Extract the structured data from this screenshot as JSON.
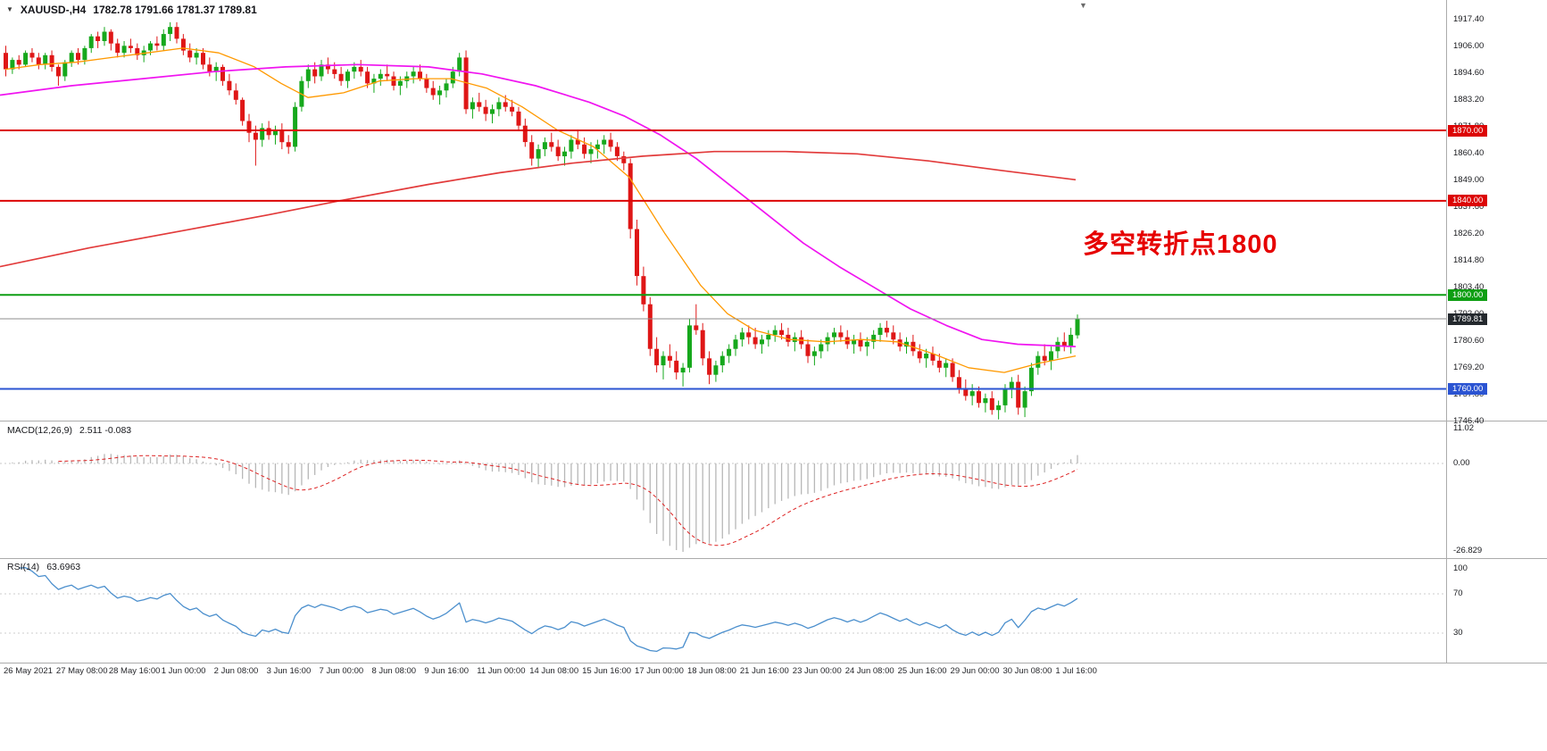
{
  "header": {
    "symbol_period": "XAUUSD-,H4",
    "ohlc": "1782.78 1791.66 1781.37 1789.81"
  },
  "annotation": {
    "text": "多空转折点1800",
    "color": "#e60000"
  },
  "indicators": {
    "macd": {
      "title": "MACD(12,26,9)",
      "values": "2.511 -0.083"
    },
    "rsi": {
      "title": "RSI(14)",
      "value": "63.6963"
    }
  },
  "colors": {
    "bull": "#16a81c",
    "bear": "#df1616",
    "ma_fast": "#ff9900",
    "ma_mid": "#f014f0",
    "ma_slow": "#e23b3b",
    "hline_red": "#dc0404",
    "hline_green": "#0e9e13",
    "hline_blue": "#2b54d2",
    "price_line": "#8e8e8e",
    "price_badge_bg": "#24292e",
    "macd_hist": "#b7b7b7",
    "macd_signal": "#dd2222",
    "rsi_line": "#4b8fcd",
    "grid_dotted": "#c9c9c9"
  },
  "chart_data": {
    "type": "candlestick",
    "symbol": "XAUUSD-",
    "timeframe": "H4",
    "title": "XAUUSD-,H4 1782.78 1791.66 1781.37 1789.81",
    "current_bar": {
      "open": 1782.78,
      "high": 1791.66,
      "low": 1781.37,
      "close": 1789.81
    },
    "ylim": [
      1746.4,
      1917.4
    ],
    "price_axis_labels": [
      {
        "price": 1917.4,
        "text": "1917.40"
      },
      {
        "price": 1906.0,
        "text": "1906.00"
      },
      {
        "price": 1894.6,
        "text": "1894.60"
      },
      {
        "price": 1883.2,
        "text": "1883.20"
      },
      {
        "price": 1871.8,
        "text": "1871.80"
      },
      {
        "price": 1860.4,
        "text": "1860.40"
      },
      {
        "price": 1849.0,
        "text": "1849.00"
      },
      {
        "price": 1837.6,
        "text": "1837.60"
      },
      {
        "price": 1826.2,
        "text": "1826.20"
      },
      {
        "price": 1814.8,
        "text": "1814.80"
      },
      {
        "price": 1803.4,
        "text": "1803.40"
      },
      {
        "price": 1792.0,
        "text": "1792.00"
      },
      {
        "price": 1780.6,
        "text": "1780.60"
      },
      {
        "price": 1769.2,
        "text": "1769.20"
      },
      {
        "price": 1757.8,
        "text": "1757.80"
      },
      {
        "price": 1746.4,
        "text": "1746.40"
      }
    ],
    "hlines": [
      {
        "price": 1870.0,
        "label": "1870.00",
        "color": "#dc0404",
        "width": 2
      },
      {
        "price": 1840.0,
        "label": "1840.00",
        "color": "#dc0404",
        "width": 2
      },
      {
        "price": 1800.0,
        "label": "1800.00",
        "color": "#0e9e13",
        "width": 2
      },
      {
        "price": 1789.81,
        "label": "1789.81",
        "color": "#8e8e8e",
        "width": 1,
        "badge_bg": "#24292e"
      },
      {
        "price": 1760.0,
        "label": "1760.00",
        "color": "#2b54d2",
        "width": 2
      }
    ],
    "candles": [
      [
        1903,
        1906,
        1893,
        1896
      ],
      [
        1896,
        1901,
        1894,
        1900
      ],
      [
        1900,
        1902,
        1896,
        1898
      ],
      [
        1898,
        1904,
        1897,
        1903
      ],
      [
        1903,
        1905,
        1899,
        1901
      ],
      [
        1901,
        1903,
        1896,
        1898
      ],
      [
        1898,
        1903,
        1896,
        1902
      ],
      [
        1902,
        1904,
        1895,
        1897
      ],
      [
        1897,
        1898,
        1889,
        1893
      ],
      [
        1893,
        1900,
        1891,
        1899
      ],
      [
        1899,
        1904,
        1897,
        1903
      ],
      [
        1903,
        1905,
        1898,
        1900
      ],
      [
        1900,
        1906,
        1898,
        1905
      ],
      [
        1905,
        1911,
        1903,
        1910
      ],
      [
        1910,
        1912,
        1905,
        1908
      ],
      [
        1908,
        1914,
        1906,
        1912
      ],
      [
        1912,
        1913,
        1904,
        1907
      ],
      [
        1907,
        1909,
        1901,
        1903
      ],
      [
        1903,
        1908,
        1901,
        1906
      ],
      [
        1906,
        1909,
        1903,
        1905
      ],
      [
        1905,
        1907,
        1900,
        1902
      ],
      [
        1902,
        1906,
        1899,
        1904
      ],
      [
        1904,
        1908,
        1902,
        1907
      ],
      [
        1907,
        1910,
        1904,
        1906
      ],
      [
        1906,
        1913,
        1904,
        1911
      ],
      [
        1911,
        1916,
        1908,
        1914
      ],
      [
        1914,
        1916,
        1907,
        1909
      ],
      [
        1909,
        1911,
        1902,
        1904
      ],
      [
        1904,
        1907,
        1899,
        1901
      ],
      [
        1901,
        1905,
        1898,
        1903
      ],
      [
        1903,
        1905,
        1896,
        1898
      ],
      [
        1898,
        1901,
        1893,
        1895
      ],
      [
        1895,
        1899,
        1891,
        1897
      ],
      [
        1897,
        1898,
        1889,
        1891
      ],
      [
        1891,
        1894,
        1885,
        1887
      ],
      [
        1887,
        1890,
        1881,
        1883
      ],
      [
        1883,
        1884,
        1872,
        1874
      ],
      [
        1874,
        1877,
        1865,
        1869
      ],
      [
        1869,
        1872,
        1855,
        1866
      ],
      [
        1866,
        1873,
        1863,
        1871
      ],
      [
        1871,
        1874,
        1866,
        1868
      ],
      [
        1868,
        1872,
        1864,
        1870
      ],
      [
        1870,
        1873,
        1862,
        1865
      ],
      [
        1865,
        1868,
        1860,
        1863
      ],
      [
        1863,
        1882,
        1861,
        1880
      ],
      [
        1880,
        1893,
        1878,
        1891
      ],
      [
        1891,
        1898,
        1888,
        1896
      ],
      [
        1896,
        1899,
        1890,
        1893
      ],
      [
        1893,
        1900,
        1891,
        1898
      ],
      [
        1898,
        1901,
        1894,
        1896
      ],
      [
        1896,
        1899,
        1892,
        1894
      ],
      [
        1894,
        1897,
        1889,
        1891
      ],
      [
        1891,
        1896,
        1888,
        1895
      ],
      [
        1895,
        1899,
        1892,
        1897
      ],
      [
        1897,
        1900,
        1893,
        1895
      ],
      [
        1895,
        1897,
        1888,
        1890
      ],
      [
        1890,
        1894,
        1886,
        1892
      ],
      [
        1892,
        1896,
        1889,
        1894
      ],
      [
        1894,
        1898,
        1891,
        1893
      ],
      [
        1893,
        1895,
        1887,
        1889
      ],
      [
        1889,
        1893,
        1885,
        1891
      ],
      [
        1891,
        1895,
        1888,
        1893
      ],
      [
        1893,
        1897,
        1890,
        1895
      ],
      [
        1895,
        1898,
        1891,
        1892
      ],
      [
        1892,
        1894,
        1886,
        1888
      ],
      [
        1888,
        1891,
        1883,
        1885
      ],
      [
        1885,
        1889,
        1881,
        1887
      ],
      [
        1887,
        1892,
        1884,
        1890
      ],
      [
        1890,
        1897,
        1888,
        1895
      ],
      [
        1895,
        1903,
        1893,
        1901
      ],
      [
        1901,
        1904,
        1877,
        1879
      ],
      [
        1879,
        1884,
        1875,
        1882
      ],
      [
        1882,
        1886,
        1878,
        1880
      ],
      [
        1880,
        1883,
        1874,
        1877
      ],
      [
        1877,
        1881,
        1873,
        1879
      ],
      [
        1879,
        1884,
        1876,
        1882
      ],
      [
        1882,
        1885,
        1878,
        1880
      ],
      [
        1880,
        1883,
        1876,
        1878
      ],
      [
        1878,
        1880,
        1870,
        1872
      ],
      [
        1872,
        1875,
        1863,
        1865
      ],
      [
        1865,
        1868,
        1855,
        1858
      ],
      [
        1858,
        1864,
        1854,
        1862
      ],
      [
        1862,
        1867,
        1859,
        1865
      ],
      [
        1865,
        1869,
        1861,
        1863
      ],
      [
        1863,
        1866,
        1857,
        1859
      ],
      [
        1859,
        1863,
        1855,
        1861
      ],
      [
        1861,
        1868,
        1858,
        1866
      ],
      [
        1866,
        1870,
        1862,
        1864
      ],
      [
        1864,
        1867,
        1858,
        1860
      ],
      [
        1860,
        1865,
        1856,
        1862
      ],
      [
        1862,
        1866,
        1858,
        1864
      ],
      [
        1864,
        1868,
        1860,
        1866
      ],
      [
        1866,
        1869,
        1861,
        1863
      ],
      [
        1863,
        1865,
        1857,
        1859
      ],
      [
        1859,
        1861,
        1853,
        1856
      ],
      [
        1856,
        1858,
        1824,
        1828
      ],
      [
        1828,
        1832,
        1804,
        1808
      ],
      [
        1808,
        1812,
        1793,
        1796
      ],
      [
        1796,
        1799,
        1774,
        1777
      ],
      [
        1777,
        1782,
        1767,
        1770
      ],
      [
        1770,
        1776,
        1764,
        1774
      ],
      [
        1774,
        1779,
        1769,
        1772
      ],
      [
        1772,
        1776,
        1764,
        1767
      ],
      [
        1767,
        1771,
        1761,
        1769
      ],
      [
        1769,
        1790,
        1767,
        1787
      ],
      [
        1787,
        1796,
        1783,
        1785
      ],
      [
        1785,
        1788,
        1770,
        1773
      ],
      [
        1773,
        1776,
        1762,
        1766
      ],
      [
        1766,
        1772,
        1763,
        1770
      ],
      [
        1770,
        1776,
        1767,
        1774
      ],
      [
        1774,
        1779,
        1771,
        1777
      ],
      [
        1777,
        1783,
        1774,
        1781
      ],
      [
        1781,
        1786,
        1778,
        1784
      ],
      [
        1784,
        1787,
        1779,
        1782
      ],
      [
        1782,
        1786,
        1777,
        1779
      ],
      [
        1779,
        1783,
        1775,
        1781
      ],
      [
        1781,
        1785,
        1778,
        1783
      ],
      [
        1783,
        1787,
        1780,
        1785
      ],
      [
        1785,
        1788,
        1781,
        1783
      ],
      [
        1783,
        1786,
        1778,
        1780
      ],
      [
        1780,
        1784,
        1776,
        1782
      ],
      [
        1782,
        1785,
        1777,
        1779
      ],
      [
        1779,
        1781,
        1771,
        1774
      ],
      [
        1774,
        1778,
        1770,
        1776
      ],
      [
        1776,
        1781,
        1773,
        1779
      ],
      [
        1779,
        1784,
        1776,
        1782
      ],
      [
        1782,
        1786,
        1779,
        1784
      ],
      [
        1784,
        1787,
        1780,
        1782
      ],
      [
        1782,
        1785,
        1777,
        1779
      ],
      [
        1779,
        1783,
        1775,
        1781
      ],
      [
        1781,
        1784,
        1776,
        1778
      ],
      [
        1778,
        1782,
        1774,
        1780
      ],
      [
        1780,
        1785,
        1777,
        1783
      ],
      [
        1783,
        1788,
        1780,
        1786
      ],
      [
        1786,
        1789,
        1782,
        1784
      ],
      [
        1784,
        1787,
        1779,
        1781
      ],
      [
        1781,
        1784,
        1776,
        1778
      ],
      [
        1778,
        1782,
        1775,
        1780
      ],
      [
        1780,
        1783,
        1774,
        1776
      ],
      [
        1776,
        1779,
        1771,
        1773
      ],
      [
        1773,
        1777,
        1769,
        1775
      ],
      [
        1775,
        1778,
        1770,
        1772
      ],
      [
        1772,
        1775,
        1767,
        1769
      ],
      [
        1769,
        1773,
        1765,
        1771
      ],
      [
        1771,
        1773,
        1763,
        1765
      ],
      [
        1765,
        1768,
        1758,
        1760
      ],
      [
        1760,
        1764,
        1755,
        1757
      ],
      [
        1757,
        1762,
        1753,
        1759
      ],
      [
        1759,
        1761,
        1752,
        1754
      ],
      [
        1754,
        1758,
        1750,
        1756
      ],
      [
        1756,
        1759,
        1749,
        1751
      ],
      [
        1751,
        1755,
        1747,
        1753
      ],
      [
        1753,
        1762,
        1750,
        1760
      ],
      [
        1760,
        1765,
        1756,
        1763
      ],
      [
        1763,
        1766,
        1749,
        1752
      ],
      [
        1752,
        1761,
        1748,
        1759
      ],
      [
        1759,
        1771,
        1757,
        1769
      ],
      [
        1769,
        1776,
        1766,
        1774
      ],
      [
        1774,
        1779,
        1770,
        1772
      ],
      [
        1772,
        1778,
        1768,
        1776
      ],
      [
        1776,
        1782,
        1773,
        1780
      ],
      [
        1780,
        1784,
        1776,
        1778
      ],
      [
        1778,
        1786,
        1775,
        1783
      ],
      [
        1782.78,
        1791.66,
        1781.37,
        1789.81
      ]
    ],
    "moving_averages": {
      "fast": [
        [
          6,
          1896
        ],
        [
          45,
          1898
        ],
        [
          85,
          1899
        ],
        [
          125,
          1901
        ],
        [
          165,
          1903
        ],
        [
          205,
          1905
        ],
        [
          245,
          1903
        ],
        [
          285,
          1897
        ],
        [
          315,
          1890
        ],
        [
          345,
          1884
        ],
        [
          385,
          1886
        ],
        [
          425,
          1891
        ],
        [
          465,
          1892
        ],
        [
          505,
          1892
        ],
        [
          545,
          1888
        ],
        [
          585,
          1880
        ],
        [
          625,
          1870
        ],
        [
          665,
          1863
        ],
        [
          705,
          1850
        ],
        [
          745,
          1826
        ],
        [
          785,
          1804
        ],
        [
          815,
          1792
        ],
        [
          845,
          1785
        ],
        [
          885,
          1781
        ],
        [
          925,
          1780
        ],
        [
          965,
          1781
        ],
        [
          1005,
          1780
        ],
        [
          1045,
          1775
        ],
        [
          1085,
          1769
        ],
        [
          1125,
          1767
        ],
        [
          1165,
          1771
        ],
        [
          1205,
          1774
        ]
      ],
      "mid": [
        [
          0,
          1885
        ],
        [
          80,
          1889
        ],
        [
          160,
          1892
        ],
        [
          240,
          1895
        ],
        [
          320,
          1897
        ],
        [
          400,
          1898
        ],
        [
          480,
          1897
        ],
        [
          540,
          1894
        ],
        [
          600,
          1889
        ],
        [
          660,
          1882
        ],
        [
          700,
          1876
        ],
        [
          740,
          1868
        ],
        [
          780,
          1858
        ],
        [
          820,
          1846
        ],
        [
          860,
          1834
        ],
        [
          900,
          1822
        ],
        [
          940,
          1812
        ],
        [
          980,
          1803
        ],
        [
          1020,
          1794
        ],
        [
          1060,
          1787
        ],
        [
          1100,
          1781
        ],
        [
          1140,
          1779
        ],
        [
          1205,
          1778
        ]
      ],
      "slow": [
        [
          0,
          1812
        ],
        [
          100,
          1820
        ],
        [
          200,
          1827
        ],
        [
          300,
          1834
        ],
        [
          380,
          1840
        ],
        [
          480,
          1847
        ],
        [
          560,
          1852
        ],
        [
          640,
          1856
        ],
        [
          720,
          1859
        ],
        [
          800,
          1861
        ],
        [
          880,
          1861
        ],
        [
          960,
          1860
        ],
        [
          1040,
          1857
        ],
        [
          1120,
          1853
        ],
        [
          1205,
          1849
        ]
      ]
    },
    "macd": {
      "fast": 12,
      "slow": 26,
      "signal": 9,
      "current": 2.511,
      "current_signal": -0.083,
      "axis_labels": [
        "11.02",
        "0.00",
        "-26.829"
      ],
      "ylim": [
        -26.829,
        11.02
      ]
    },
    "rsi": {
      "period": 14,
      "current": 63.6963,
      "levels": [
        70,
        30
      ],
      "axis_labels": [
        "100",
        "70",
        "30"
      ],
      "ylim": [
        0,
        100
      ]
    },
    "x_axis_dates": [
      "26 May 2021",
      "27 May 08:00",
      "28 May 16:00",
      "1 Jun 00:00",
      "2 Jun 08:00",
      "3 Jun 16:00",
      "7 Jun 00:00",
      "8 Jun 08:00",
      "9 Jun 16:00",
      "11 Jun 00:00",
      "14 Jun 08:00",
      "15 Jun 16:00",
      "17 Jun 00:00",
      "18 Jun 08:00",
      "21 Jun 16:00",
      "23 Jun 00:00",
      "24 Jun 08:00",
      "25 Jun 16:00",
      "29 Jun 00:00",
      "30 Jun 08:00",
      "1 Jul 16:00"
    ]
  }
}
